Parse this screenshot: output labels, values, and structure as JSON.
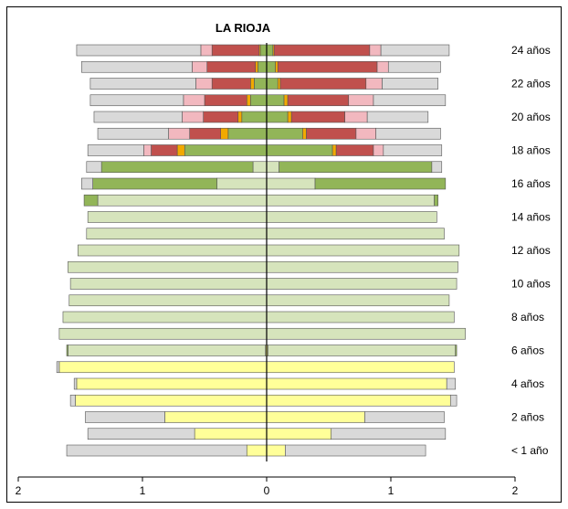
{
  "chart_data": {
    "type": "bar",
    "orientation": "horizontal",
    "layout": "population-pyramid (stacked, mirrored about 0)",
    "title": "LA RIOJA",
    "x_axis": {
      "ticks": [
        "2",
        "1",
        "0",
        "1",
        "2"
      ],
      "range": [
        -2,
        2
      ]
    },
    "y_tick_labels": [
      "< 1 año",
      "2 años",
      "4 años",
      "6 años",
      "8 años",
      "10 años",
      "12 años",
      "14 años",
      "16 años",
      "18 años",
      "20 años",
      "22 años",
      "24 años"
    ],
    "segment_colors": [
      "#ffff99",
      "#d6e4bc",
      "#92b558",
      "#f2a900",
      "#c0504d",
      "#f2b8bf",
      "#d9d9d9"
    ],
    "rows": [
      {
        "label": "< 1 año",
        "left": [
          0.16,
          0,
          0,
          0,
          0,
          0,
          1.45
        ],
        "right": [
          0.15,
          0,
          0,
          0,
          0,
          0,
          1.13
        ]
      },
      {
        "label": "",
        "left": [
          0.58,
          0,
          0,
          0,
          0,
          0,
          0.86
        ],
        "right": [
          0.52,
          0,
          0,
          0,
          0,
          0,
          0.92
        ]
      },
      {
        "label": "2 años",
        "left": [
          0.82,
          0,
          0,
          0,
          0,
          0,
          0.64
        ],
        "right": [
          0.79,
          0,
          0,
          0,
          0,
          0,
          0.64
        ]
      },
      {
        "label": "",
        "left": [
          1.54,
          0,
          0,
          0,
          0,
          0,
          0.04
        ],
        "right": [
          1.48,
          0,
          0,
          0,
          0,
          0,
          0.05
        ]
      },
      {
        "label": "4 años",
        "left": [
          1.53,
          0,
          0,
          0,
          0,
          0,
          0.02
        ],
        "right": [
          1.45,
          0,
          0,
          0,
          0,
          0,
          0.07
        ]
      },
      {
        "label": "",
        "left": [
          1.67,
          0,
          0,
          0,
          0,
          0,
          0.02
        ],
        "right": [
          1.51,
          0,
          0,
          0,
          0,
          0,
          0
        ]
      },
      {
        "label": "6 años",
        "left": [
          0.01,
          1.59,
          0.01,
          0,
          0,
          0,
          0
        ],
        "right": [
          0.01,
          1.51,
          0.01,
          0,
          0,
          0,
          0
        ]
      },
      {
        "label": "",
        "left": [
          0,
          1.67,
          0,
          0,
          0,
          0,
          0
        ],
        "right": [
          0,
          1.6,
          0,
          0,
          0,
          0,
          0
        ]
      },
      {
        "label": "8 años",
        "left": [
          0,
          1.64,
          0,
          0,
          0,
          0,
          0
        ],
        "right": [
          0,
          1.51,
          0,
          0,
          0,
          0,
          0
        ]
      },
      {
        "label": "",
        "left": [
          0,
          1.59,
          0,
          0,
          0,
          0,
          0
        ],
        "right": [
          0,
          1.47,
          0,
          0,
          0,
          0,
          0
        ]
      },
      {
        "label": "10 años",
        "left": [
          0,
          1.58,
          0,
          0,
          0,
          0,
          0
        ],
        "right": [
          0,
          1.53,
          0,
          0,
          0,
          0,
          0
        ]
      },
      {
        "label": "",
        "left": [
          0,
          1.6,
          0,
          0,
          0,
          0,
          0
        ],
        "right": [
          0,
          1.54,
          0,
          0,
          0,
          0,
          0
        ]
      },
      {
        "label": "12 años",
        "left": [
          0,
          1.52,
          0,
          0,
          0,
          0,
          0
        ],
        "right": [
          0,
          1.55,
          0,
          0,
          0,
          0,
          0
        ]
      },
      {
        "label": "",
        "left": [
          0,
          1.45,
          0,
          0,
          0,
          0,
          0
        ],
        "right": [
          0,
          1.43,
          0,
          0,
          0,
          0,
          0
        ]
      },
      {
        "label": "14 años",
        "left": [
          0,
          1.44,
          0,
          0,
          0,
          0,
          0
        ],
        "right": [
          0,
          1.37,
          0,
          0,
          0,
          0,
          0
        ]
      },
      {
        "label": "",
        "left": [
          0,
          1.36,
          0.11,
          0,
          0,
          0,
          0
        ],
        "right": [
          0,
          1.35,
          0.03,
          0,
          0,
          0,
          0
        ]
      },
      {
        "label": "16 años",
        "left": [
          0,
          0.4,
          1.0,
          0,
          0,
          0,
          0.09
        ],
        "right": [
          0,
          0.39,
          1.05,
          0,
          0,
          0,
          0
        ]
      },
      {
        "label": "",
        "left": [
          0,
          0.11,
          1.22,
          0,
          0,
          0,
          0.12
        ],
        "right": [
          0,
          0.1,
          1.23,
          0,
          0,
          0,
          0.08
        ]
      },
      {
        "label": "18 años",
        "left": [
          0,
          0,
          0.66,
          0.06,
          0.21,
          0.06,
          0.45
        ],
        "right": [
          0,
          0,
          0.53,
          0.03,
          0.3,
          0.08,
          0.47
        ]
      },
      {
        "label": "",
        "left": [
          0,
          0,
          0.31,
          0.06,
          0.25,
          0.17,
          0.57
        ],
        "right": [
          0,
          0,
          0.29,
          0.03,
          0.4,
          0.16,
          0.52
        ]
      },
      {
        "label": "20 años",
        "left": [
          0,
          0,
          0.2,
          0.03,
          0.28,
          0.17,
          0.71
        ],
        "right": [
          0,
          0,
          0.17,
          0.03,
          0.43,
          0.18,
          0.49
        ]
      },
      {
        "label": "",
        "left": [
          0,
          0,
          0.13,
          0.03,
          0.34,
          0.17,
          0.75
        ],
        "right": [
          0,
          0,
          0.14,
          0.03,
          0.49,
          0.2,
          0.58
        ]
      },
      {
        "label": "22 años",
        "left": [
          0,
          0,
          0.1,
          0.03,
          0.31,
          0.13,
          0.85
        ],
        "right": [
          0,
          0,
          0.09,
          0.02,
          0.69,
          0.13,
          0.45
        ]
      },
      {
        "label": "",
        "left": [
          0,
          0,
          0.07,
          0.02,
          0.39,
          0.12,
          0.89
        ],
        "right": [
          0,
          0,
          0.07,
          0.02,
          0.8,
          0.09,
          0.42
        ]
      },
      {
        "label": "24 años",
        "left": [
          0,
          0,
          0.05,
          0.01,
          0.38,
          0.09,
          1.0
        ],
        "right": [
          0,
          0,
          0.05,
          0.01,
          0.77,
          0.09,
          0.55
        ]
      }
    ]
  }
}
